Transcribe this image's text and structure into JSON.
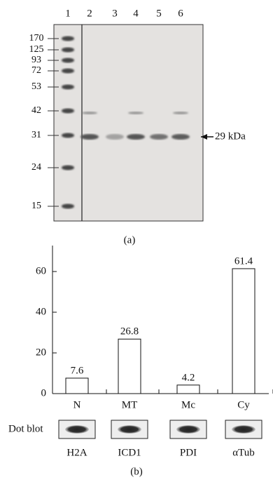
{
  "gel": {
    "lanes": [
      "1",
      "2",
      "3",
      "4",
      "5",
      "6"
    ],
    "markers": [
      170,
      125,
      93,
      72,
      53,
      42,
      31,
      24,
      15
    ],
    "band_label": "29 kDa",
    "panel": "(a)"
  },
  "chart_data": {
    "type": "bar",
    "categories": [
      "N",
      "MT",
      "Mc",
      "Cy"
    ],
    "values": [
      7.6,
      26.8,
      4.2,
      61.4
    ],
    "color": "#ffffff",
    "ylim": [
      0,
      70
    ],
    "yticks": [
      0,
      20,
      40,
      60
    ],
    "grid": false
  },
  "dot_blot": {
    "label": "Dot blot",
    "proteins": [
      "H2A",
      "ICD1",
      "PDI",
      "αTub"
    ]
  },
  "panel_b": "(b)"
}
